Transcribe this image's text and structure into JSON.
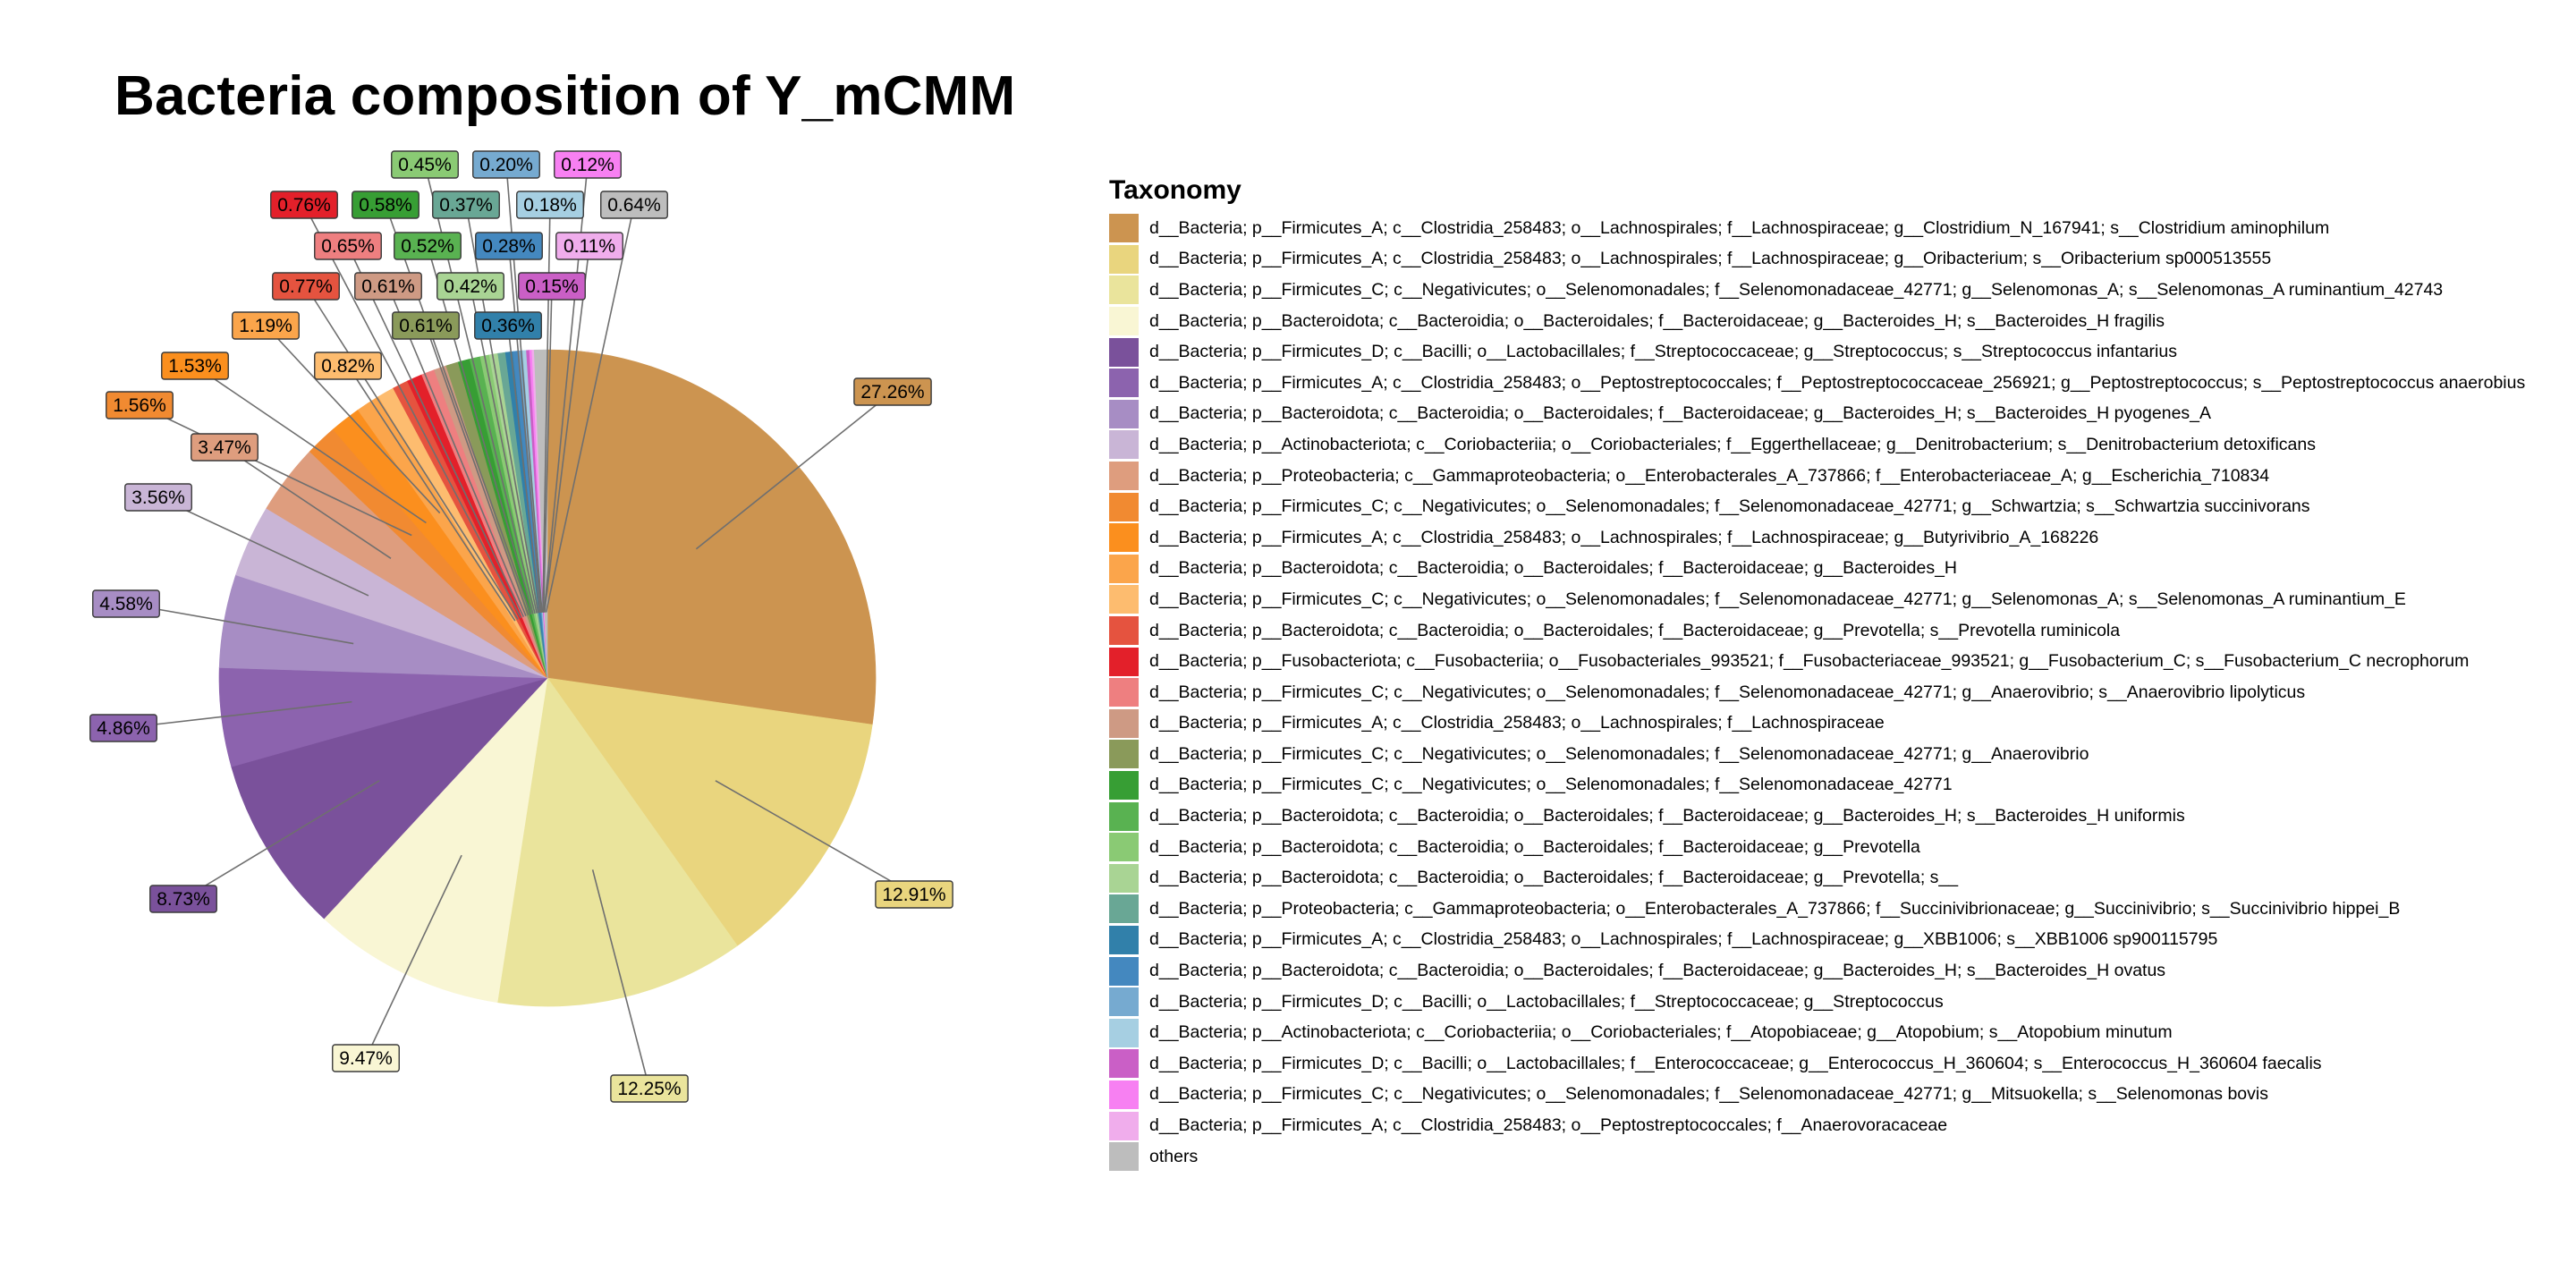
{
  "chart_data": {
    "type": "pie",
    "title": "Bacteria composition of Y_mCMM",
    "legend_title": "Taxonomy",
    "legend_position": "right",
    "slices": [
      {
        "label": "d__Bacteria; p__Firmicutes_A; c__Clostridia_258483; o__Lachnospirales; f__Lachnospiraceae; g__Clostridium_N_167941; s__Clostridium aminophilum",
        "value": 27.26,
        "color": "#CC9450"
      },
      {
        "label": "d__Bacteria; p__Firmicutes_A; c__Clostridia_258483; o__Lachnospirales; f__Lachnospiraceae; g__Oribacterium; s__Oribacterium sp000513555",
        "value": 12.91,
        "color": "#E9D57E"
      },
      {
        "label": "d__Bacteria; p__Firmicutes_C; c__Negativicutes; o__Selenomonadales; f__Selenomonadaceae_42771; g__Selenomonas_A; s__Selenomonas_A ruminantium_42743",
        "value": 12.25,
        "color": "#EAE49C"
      },
      {
        "label": "d__Bacteria; p__Bacteroidota; c__Bacteroidia; o__Bacteroidales; f__Bacteroidaceae; g__Bacteroides_H; s__Bacteroides_H fragilis",
        "value": 9.47,
        "color": "#F9F6D4"
      },
      {
        "label": "d__Bacteria; p__Firmicutes_D; c__Bacilli; o__Lactobacillales; f__Streptococcaceae; g__Streptococcus; s__Streptococcus infantarius",
        "value": 8.73,
        "color": "#7A519B"
      },
      {
        "label": "d__Bacteria; p__Firmicutes_A; c__Clostridia_258483; o__Peptostreptococcales; f__Peptostreptococcaceae_256921; g__Peptostreptococcus; s__Peptostreptococcus anaerobius",
        "value": 4.86,
        "color": "#8C63AE"
      },
      {
        "label": "d__Bacteria; p__Bacteroidota; c__Bacteroidia; o__Bacteroidales; f__Bacteroidaceae; g__Bacteroides_H; s__Bacteroides_H pyogenes_A",
        "value": 4.58,
        "color": "#A78DC4"
      },
      {
        "label": "d__Bacteria; p__Actinobacteriota; c__Coriobacteriia; o__Coriobacteriales; f__Eggerthellaceae; g__Denitrobacterium; s__Denitrobacterium detoxificans",
        "value": 3.56,
        "color": "#C9B5D6"
      },
      {
        "label": "d__Bacteria; p__Proteobacteria; c__Gammaproteobacteria; o__Enterobacterales_A_737866; f__Enterobacteriaceae_A; g__Escherichia_710834",
        "value": 3.47,
        "color": "#DE9D7E"
      },
      {
        "label": "d__Bacteria; p__Firmicutes_C; c__Negativicutes; o__Selenomonadales; f__Selenomonadaceae_42771; g__Schwartzia; s__Schwartzia succinivorans",
        "value": 1.56,
        "color": "#F18A31"
      },
      {
        "label": "d__Bacteria; p__Firmicutes_A; c__Clostridia_258483; o__Lachnospirales; f__Lachnospiraceae; g__Butyrivibrio_A_168226",
        "value": 1.53,
        "color": "#FB8F1E"
      },
      {
        "label": "d__Bacteria; p__Bacteroidota; c__Bacteroidia; o__Bacteroidales; f__Bacteroidaceae; g__Bacteroides_H",
        "value": 1.19,
        "color": "#FBA54B"
      },
      {
        "label": "d__Bacteria; p__Firmicutes_C; c__Negativicutes; o__Selenomonadales; f__Selenomonadaceae_42771; g__Selenomonas_A; s__Selenomonas_A ruminantium_E",
        "value": 0.82,
        "color": "#FDBC6F"
      },
      {
        "label": "d__Bacteria; p__Bacteroidota; c__Bacteroidia; o__Bacteroidales; f__Bacteroidaceae; g__Prevotella; s__Prevotella ruminicola",
        "value": 0.77,
        "color": "#E5533F"
      },
      {
        "label": "d__Bacteria; p__Fusobacteriota; c__Fusobacteriia; o__Fusobacteriales_993521; f__Fusobacteriaceae_993521; g__Fusobacterium_C; s__Fusobacterium_C necrophorum",
        "value": 0.76,
        "color": "#E3202A"
      },
      {
        "label": "d__Bacteria; p__Firmicutes_C; c__Negativicutes; o__Selenomonadales; f__Selenomonadaceae_42771; g__Anaerovibrio; s__Anaerovibrio lipolyticus",
        "value": 0.65,
        "color": "#EE7F80"
      },
      {
        "label": "d__Bacteria; p__Firmicutes_A; c__Clostridia_258483; o__Lachnospirales; f__Lachnospiraceae",
        "value": 0.61,
        "color": "#CE9A84"
      },
      {
        "label": "d__Bacteria; p__Firmicutes_C; c__Negativicutes; o__Selenomonadales; f__Selenomonadaceae_42771; g__Anaerovibrio",
        "value": 0.61,
        "color": "#8A9A5A"
      },
      {
        "label": "d__Bacteria; p__Firmicutes_C; c__Negativicutes; o__Selenomonadales; f__Selenomonadaceae_42771",
        "value": 0.58,
        "color": "#379E34"
      },
      {
        "label": "d__Bacteria; p__Bacteroidota; c__Bacteroidia; o__Bacteroidales; f__Bacteroidaceae; g__Bacteroides_H; s__Bacteroides_H uniformis",
        "value": 0.52,
        "color": "#59B251"
      },
      {
        "label": "d__Bacteria; p__Bacteroidota; c__Bacteroidia; o__Bacteroidales; f__Bacteroidaceae; g__Prevotella",
        "value": 0.45,
        "color": "#8ACA74"
      },
      {
        "label": "d__Bacteria; p__Bacteroidota; c__Bacteroidia; o__Bacteroidales; f__Bacteroidaceae; g__Prevotella; s__",
        "value": 0.42,
        "color": "#A9D494"
      },
      {
        "label": "d__Bacteria; p__Proteobacteria; c__Gammaproteobacteria; o__Enterobacterales_A_737866; f__Succinivibrionaceae; g__Succinivibrio; s__Succinivibrio hippei_B",
        "value": 0.37,
        "color": "#69A795"
      },
      {
        "label": "d__Bacteria; p__Firmicutes_A; c__Clostridia_258483; o__Lachnospirales; f__Lachnospiraceae; g__XBB1006; s__XBB1006 sp900115795",
        "value": 0.36,
        "color": "#3180AA"
      },
      {
        "label": "d__Bacteria; p__Bacteroidota; c__Bacteroidia; o__Bacteroidales; f__Bacteroidaceae; g__Bacteroides_H; s__Bacteroides_H ovatus",
        "value": 0.28,
        "color": "#4488BF"
      },
      {
        "label": "d__Bacteria; p__Firmicutes_D; c__Bacilli; o__Lactobacillales; f__Streptococcaceae; g__Streptococcus",
        "value": 0.2,
        "color": "#76AAD0"
      },
      {
        "label": "d__Bacteria; p__Actinobacteriota; c__Coriobacteriia; o__Coriobacteriales; f__Atopobiaceae; g__Atopobium; s__Atopobium minutum",
        "value": 0.18,
        "color": "#A6CFE2"
      },
      {
        "label": "d__Bacteria; p__Firmicutes_D; c__Bacilli; o__Lactobacillales; f__Enterococcaceae; g__Enterococcus_H_360604; s__Enterococcus_H_360604 faecalis",
        "value": 0.15,
        "color": "#CA5FC6"
      },
      {
        "label": "d__Bacteria; p__Firmicutes_C; c__Negativicutes; o__Selenomonadales; f__Selenomonadaceae_42771; g__Mitsuokella; s__Selenomonas bovis",
        "value": 0.12,
        "color": "#F780F2"
      },
      {
        "label": "d__Bacteria; p__Firmicutes_A; c__Clostridia_258483; o__Peptostreptococcales; f__Anaerovoracaceae",
        "value": 0.11,
        "color": "#F0ADEC"
      },
      {
        "label": "others",
        "value": 0.64,
        "color": "#BDBDBD"
      }
    ]
  }
}
